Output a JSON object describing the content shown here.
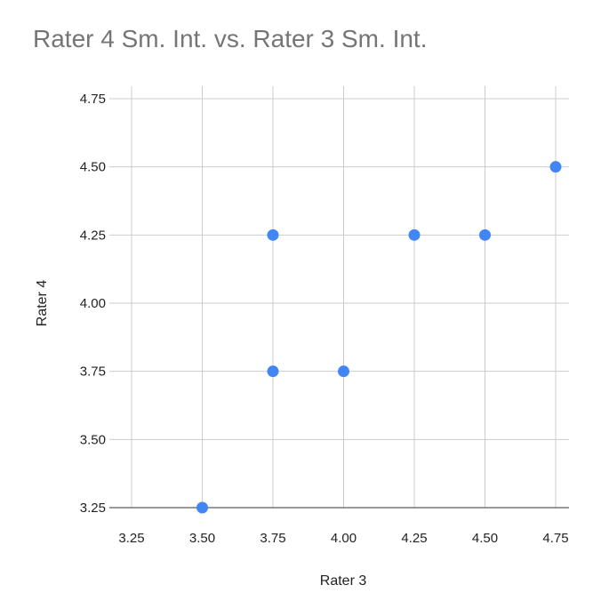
{
  "chart_data": {
    "type": "scatter",
    "title": "Rater 4 Sm. Int. vs. Rater 3 Sm. Int.",
    "xlabel": "Rater 3",
    "ylabel": "Rater 4",
    "xlim": [
      3.25,
      4.75
    ],
    "ylim": [
      3.25,
      4.75
    ],
    "x_ticks": [
      "3.25",
      "3.50",
      "3.75",
      "4.00",
      "4.25",
      "4.50",
      "4.75"
    ],
    "y_ticks": [
      "3.25",
      "3.50",
      "3.75",
      "4.00",
      "4.25",
      "4.50",
      "4.75"
    ],
    "grid": true,
    "legend": "none",
    "color": "#4285F4",
    "points": [
      {
        "x": 3.5,
        "y": 3.25
      },
      {
        "x": 3.75,
        "y": 3.75
      },
      {
        "x": 3.75,
        "y": 4.25
      },
      {
        "x": 4.0,
        "y": 3.75
      },
      {
        "x": 4.25,
        "y": 4.25
      },
      {
        "x": 4.5,
        "y": 4.25
      },
      {
        "x": 4.75,
        "y": 4.5
      }
    ]
  }
}
